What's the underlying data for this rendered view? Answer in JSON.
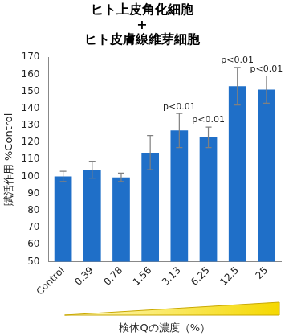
{
  "chart_data": {
    "type": "bar",
    "title": [
      "ヒト上皮角化細胞",
      "+",
      "ヒト皮膚線維芽細胞"
    ],
    "y_label": "賦活作用 %Control",
    "x_label": "検体Qの濃度（%）",
    "categories": [
      "Control",
      "0.39",
      "0.78",
      "1.56",
      "3.13",
      "6.25",
      "12.5",
      "25"
    ],
    "values": [
      100,
      104,
      99.5,
      114,
      127,
      123,
      153,
      151
    ],
    "errors": [
      3,
      5,
      2.5,
      10,
      10,
      6,
      11,
      8
    ],
    "color": "#1f6fc8",
    "ylim": [
      50,
      170
    ],
    "yticks": [
      50,
      60,
      70,
      80,
      90,
      100,
      110,
      120,
      130,
      140,
      150,
      160,
      170
    ],
    "grid": false,
    "annotations": [
      {
        "category": "3.13",
        "text": "p<0.01"
      },
      {
        "category": "6.25",
        "text": "p<0.01"
      },
      {
        "category": "12.5",
        "text": "p<0.01"
      },
      {
        "category": "25",
        "text": "p<0.01"
      }
    ]
  }
}
